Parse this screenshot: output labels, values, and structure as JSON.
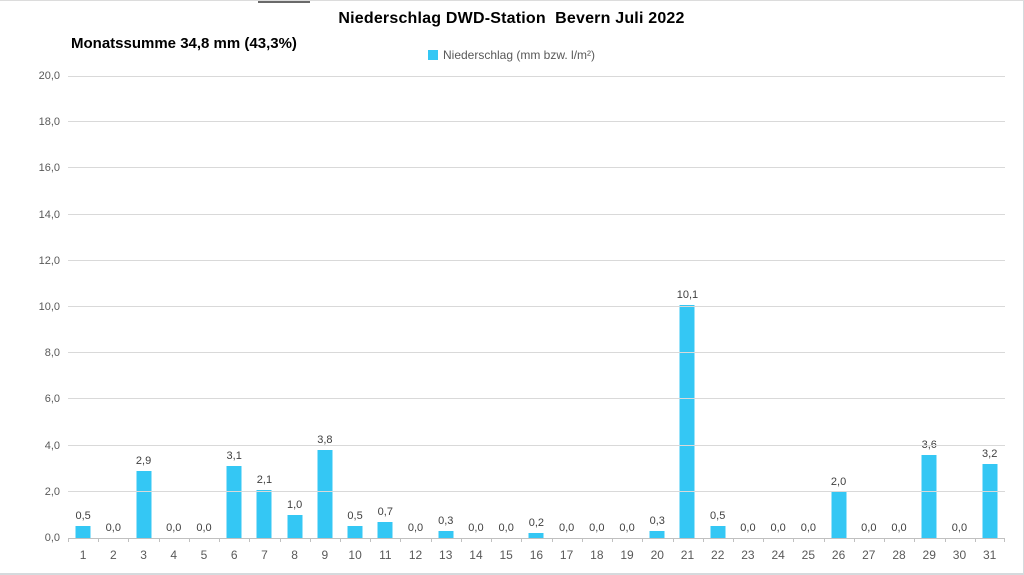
{
  "header": {
    "title": "Niederschlag DWD-Station  Bevern Juli 2022",
    "subtitle": "Monatssumme 34,8 mm (43,3%)",
    "legend_label": "Niederschlag (mm bzw. l/m²)"
  },
  "colors": {
    "bar": "#34c7f4",
    "gridline": "#d9d9d9",
    "axis_line": "#c0c0c0",
    "data_label_text": "#404040",
    "axis_text": "#595959",
    "title_text": "#000000",
    "chart_border": "#d5dadd"
  },
  "chart_data": {
    "type": "bar",
    "title": "Niederschlag DWD-Station  Bevern Juli 2022",
    "subtitle": "Monatssumme 34,8 mm (43,3%)",
    "legend": [
      "Niederschlag (mm bzw. l/m²)"
    ],
    "legend_position": "top-center",
    "xlabel": "",
    "ylabel": "",
    "categories": [
      1,
      2,
      3,
      4,
      5,
      6,
      7,
      8,
      9,
      10,
      11,
      12,
      13,
      14,
      15,
      16,
      17,
      18,
      19,
      20,
      21,
      22,
      23,
      24,
      25,
      26,
      27,
      28,
      29,
      30,
      31
    ],
    "values": [
      0.5,
      0.0,
      2.9,
      0.0,
      0.0,
      3.1,
      2.1,
      1.0,
      3.8,
      0.5,
      0.7,
      0.0,
      0.3,
      0.0,
      0.0,
      0.2,
      0.0,
      0.0,
      0.0,
      0.3,
      10.1,
      0.5,
      0.0,
      0.0,
      0.0,
      2.0,
      0.0,
      0.0,
      3.6,
      0.0,
      3.2
    ],
    "monthly_sum": 34.8,
    "monthly_percent": 43.3,
    "ylim": [
      0,
      20
    ],
    "ytick_step": 2,
    "grid": true,
    "decimal_separator": ","
  }
}
